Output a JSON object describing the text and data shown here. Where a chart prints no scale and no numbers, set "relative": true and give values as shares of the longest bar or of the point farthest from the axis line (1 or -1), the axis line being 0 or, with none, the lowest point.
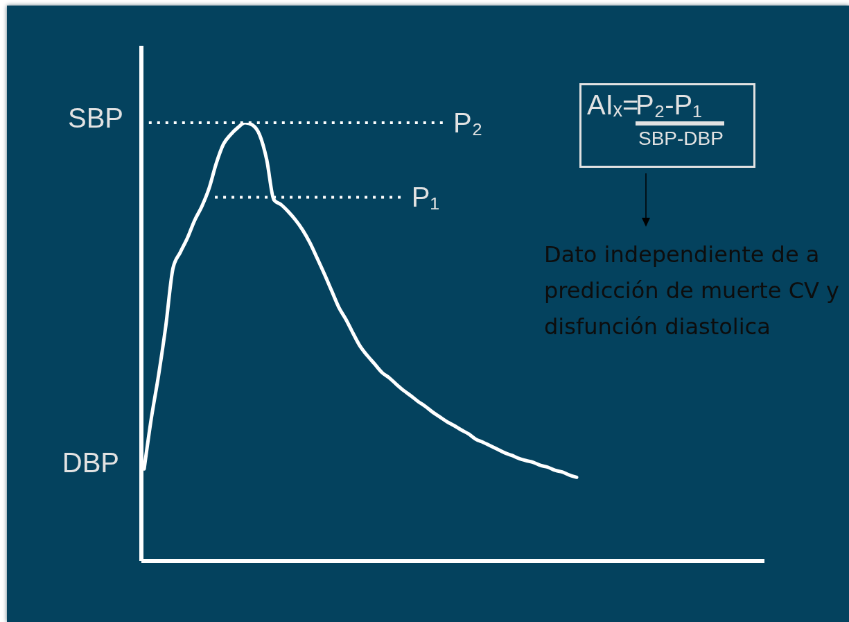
{
  "chart_data": {
    "type": "line",
    "relative": true,
    "categories": [
      null,
      null,
      null,
      null,
      null,
      null,
      null,
      null,
      null,
      null,
      null,
      null,
      null,
      null,
      null,
      null,
      null,
      null,
      null,
      null,
      null,
      null,
      null,
      null,
      null,
      null,
      null,
      null,
      null,
      null,
      null,
      null,
      null,
      null,
      null,
      null,
      null,
      null,
      null,
      null,
      null,
      null,
      null,
      null,
      null,
      null,
      null,
      null,
      null,
      null,
      null,
      null,
      null,
      null,
      null,
      null,
      null,
      null,
      null,
      null,
      null
    ],
    "series": [
      {
        "color": "#ffffff",
        "values": [
          0.21,
          0.326,
          0.424,
          0.536,
          0.668,
          0.704,
          0.737,
          0.777,
          0.809,
          0.85,
          0.907,
          0.951,
          0.973,
          0.989,
          1,
          0.995,
          0.973,
          0.916,
          0.824,
          0.813,
          0.797,
          0.778,
          0.755,
          0.726,
          0.691,
          0.655,
          0.617,
          0.579,
          0.551,
          0.519,
          0.489,
          0.468,
          0.449,
          0.43,
          0.418,
          0.403,
          0.389,
          0.377,
          0.364,
          0.353,
          0.34,
          0.329,
          0.318,
          0.309,
          0.299,
          0.29,
          0.278,
          0.271,
          0.263,
          0.255,
          0.247,
          0.241,
          0.234,
          0.229,
          0.225,
          0.218,
          0.214,
          0.207,
          0.203,
          0.196,
          0.191
        ]
      }
    ],
    "ref_lines": [
      {
        "axis": "y",
        "value": 1,
        "label": "P₂",
        "line_style": "dotted",
        "color": "#ffffff"
      },
      {
        "axis": "y",
        "value": 0.83,
        "label": "P₁",
        "line_style": "dotted",
        "color": "#ffffff"
      }
    ],
    "annotations": [
      "SBP",
      "DBP",
      "AIₓ=",
      "P₂-P₁",
      "SBP-DBP",
      "Dato independiente de a predicción de muerte CV y disfunción diastolica"
    ]
  }
}
